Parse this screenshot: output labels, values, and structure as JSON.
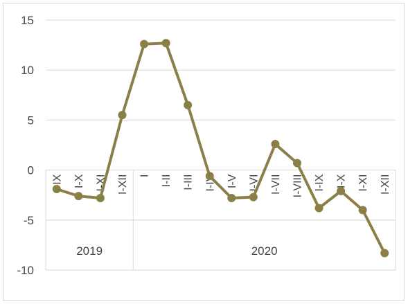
{
  "chart_data": {
    "type": "line",
    "title": "",
    "xlabel": "",
    "ylabel": "",
    "ylim": [
      -10,
      15
    ],
    "yticks": [
      15,
      10,
      5,
      0,
      -5,
      -10
    ],
    "grid": true,
    "legend": "none",
    "groups": [
      {
        "label": "2019",
        "categories": [
          "I-IX",
          "I-X",
          "I-XI",
          "I-XII"
        ]
      },
      {
        "label": "2020",
        "categories": [
          "I",
          "I-II",
          "I-III",
          "I-IV",
          "I-V",
          "I-VI",
          "I-VII",
          "I-VIII",
          "I-IX",
          "I-X",
          "I-XI",
          "I-XII"
        ]
      }
    ],
    "categories": [
      "I-IX",
      "I-X",
      "I-XI",
      "I-XII",
      "I",
      "I-II",
      "I-III",
      "I-IV",
      "I-V",
      "I-VI",
      "I-VII",
      "I-VIII",
      "I-IX",
      "I-X",
      "I-XI",
      "I-XII"
    ],
    "series": [
      {
        "values": [
          -1.9,
          -2.6,
          -2.8,
          5.5,
          12.6,
          12.7,
          6.5,
          -0.6,
          -2.8,
          -2.7,
          2.6,
          0.7,
          -3.8,
          -2.1,
          -4.0,
          -8.3
        ],
        "color": "#8b7f47"
      }
    ]
  }
}
